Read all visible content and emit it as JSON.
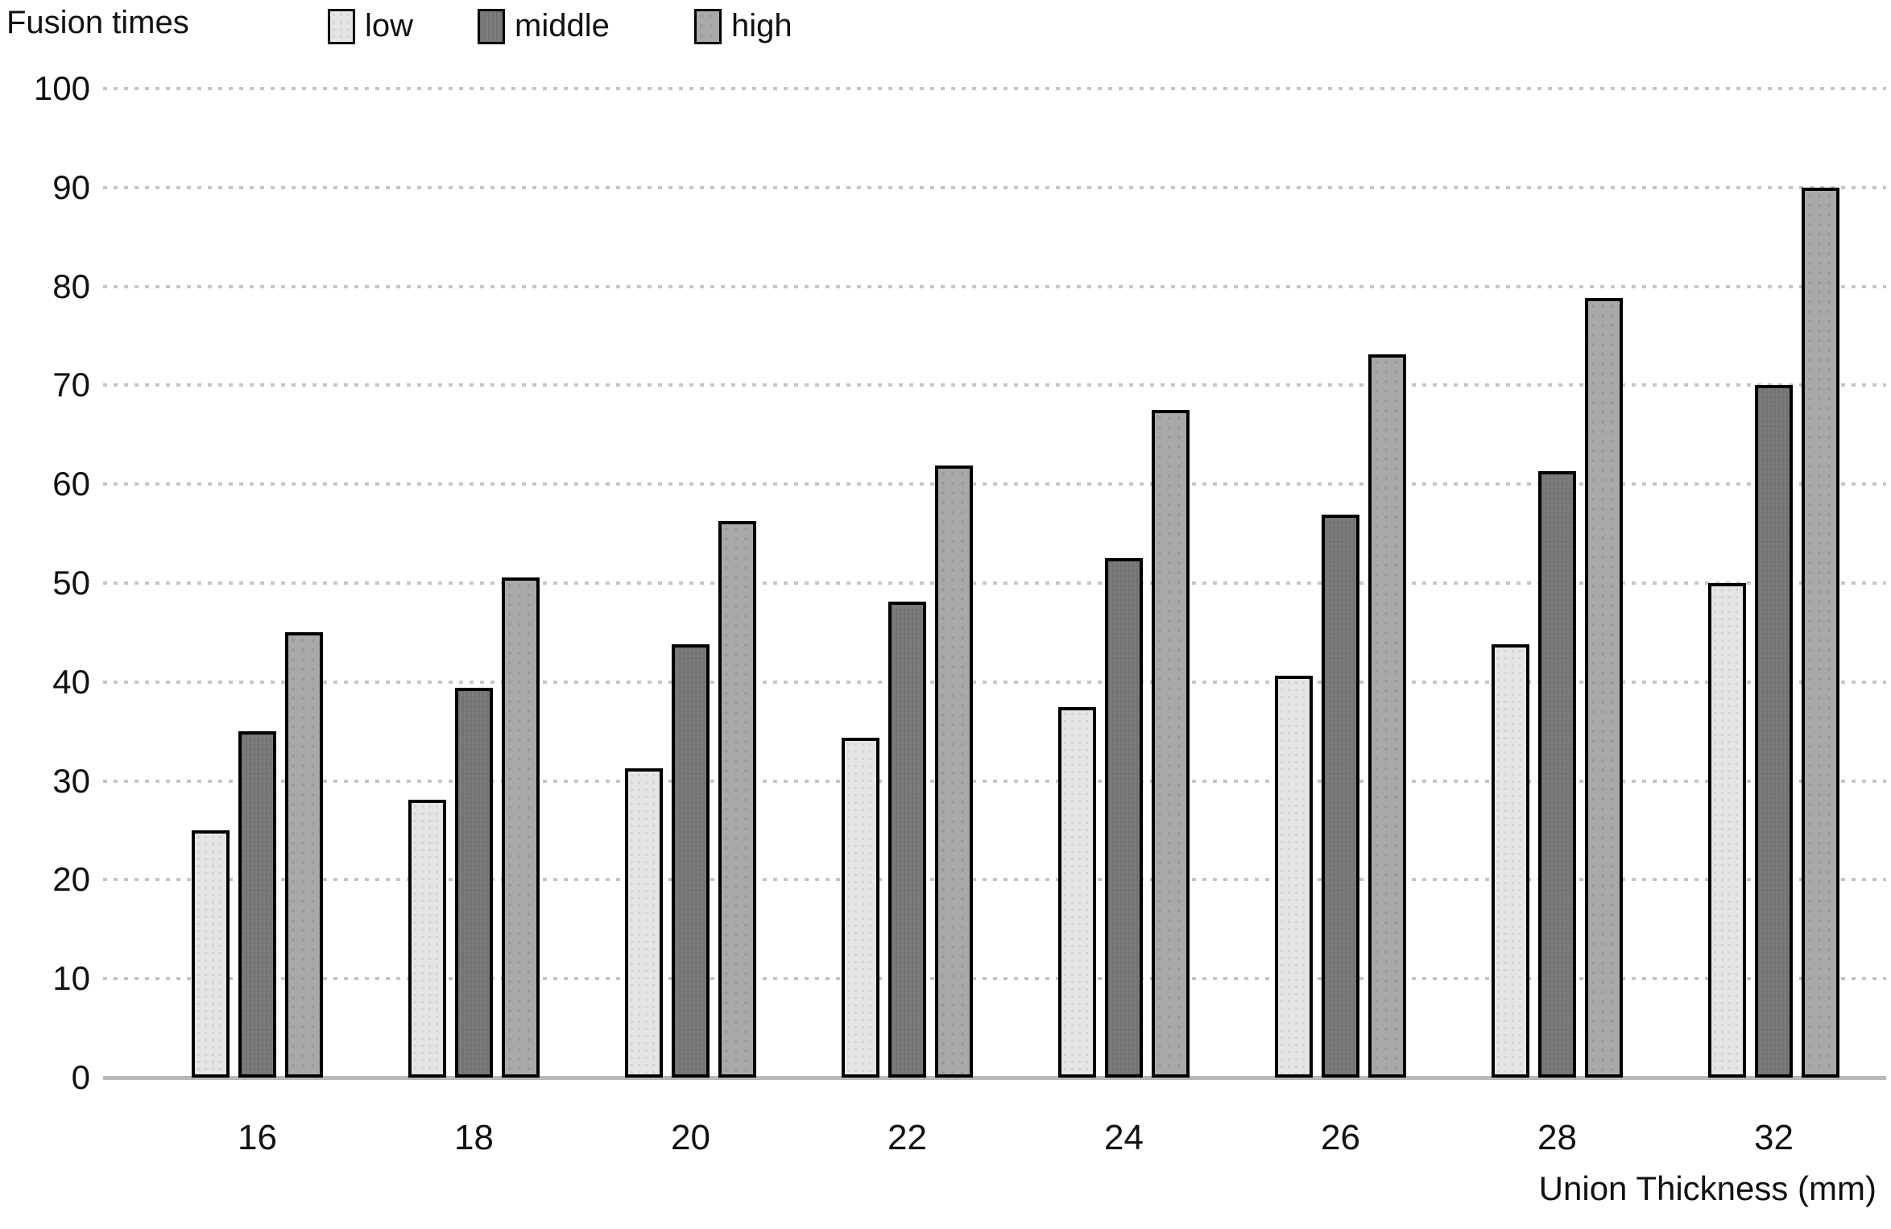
{
  "chart_data": {
    "type": "bar",
    "title": "Fusion times",
    "xlabel": "Union Thickness (mm)",
    "ylabel": "",
    "categories": [
      "16",
      "18",
      "20",
      "22",
      "24",
      "26",
      "28",
      "32"
    ],
    "series": [
      {
        "name": "low",
        "color": "#e5e5e5",
        "values": [
          25.0,
          28.1,
          31.3,
          34.4,
          37.5,
          40.6,
          43.8,
          50.0
        ]
      },
      {
        "name": "middle",
        "color": "#7d7d7d",
        "values": [
          35.0,
          39.4,
          43.8,
          48.1,
          52.5,
          56.9,
          61.3,
          70.0
        ]
      },
      {
        "name": "high",
        "color": "#a9a9a9",
        "values": [
          45.0,
          50.6,
          56.3,
          61.9,
          67.5,
          73.1,
          78.8,
          90.0
        ]
      }
    ],
    "ylim": [
      0,
      100
    ],
    "ytick_interval": 10,
    "yticks": [
      100,
      90,
      80,
      70,
      60,
      50,
      40,
      30,
      20,
      10,
      0
    ],
    "grid": "horizontal dotted",
    "legend_position": "top",
    "bar_border_color": "#000000",
    "gridline_color": "#c6c6c6",
    "baseline_color": "#b9b9b9",
    "text_color": "#111111"
  }
}
